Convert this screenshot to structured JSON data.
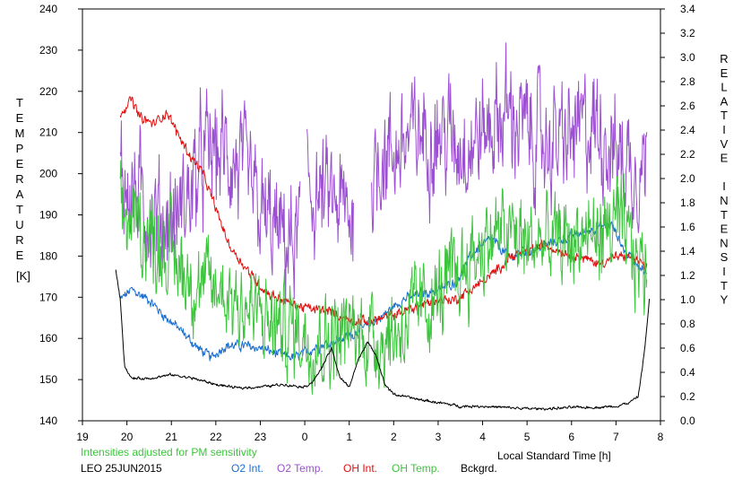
{
  "chart_data": {
    "type": "line",
    "station": "LEO 25JUN2015",
    "note": "Intensities adjusted for PM sensitivity",
    "xlabel": "Local Standard Time [h]",
    "ylabel_left_letters": [
      "T",
      "E",
      "M",
      "P",
      "E",
      "R",
      "A",
      "T",
      "U",
      "R",
      "E"
    ],
    "ylabel_left_unit": "[K]",
    "ylabel_right_letters": [
      "R",
      "E",
      "L",
      "A",
      "T",
      "I",
      "V",
      "E",
      "",
      "I",
      "N",
      "T",
      "E",
      "N",
      "S",
      "I",
      "T",
      "Y"
    ],
    "xlim": [
      19,
      32
    ],
    "ylim_left": [
      140,
      240
    ],
    "ylim_right": [
      0.0,
      3.4
    ],
    "xticks": [
      19,
      20,
      21,
      22,
      23,
      24,
      25,
      26,
      27,
      28,
      29,
      30,
      31,
      32
    ],
    "xtick_labels": [
      "19",
      "20",
      "21",
      "22",
      "23",
      "0",
      "1",
      "2",
      "3",
      "4",
      "5",
      "6",
      "7",
      "8"
    ],
    "yticks_left": [
      "140",
      "150",
      "160",
      "170",
      "180",
      "190",
      "200",
      "210",
      "220",
      "230",
      "240"
    ],
    "yticks_right": [
      "0.0",
      "0.2",
      "0.4",
      "0.6",
      "0.8",
      "1.0",
      "1.2",
      "1.4",
      "1.6",
      "1.8",
      "2.0",
      "2.2",
      "2.4",
      "2.6",
      "2.8",
      "3.0",
      "3.2",
      "3.4"
    ],
    "grid": false,
    "legend_position": "bottom",
    "series": [
      {
        "name": "O2 Int.",
        "axis": "right",
        "color": "#1a6fd0",
        "noise": 0.03,
        "x": [
          19.85,
          20.1,
          20.5,
          20.8,
          21.2,
          21.6,
          21.9,
          22.2,
          22.6,
          23.0,
          23.4,
          23.8,
          24.2,
          24.6,
          25.0,
          25.4,
          25.8,
          26.2,
          26.6,
          27.0,
          27.4,
          27.8,
          28.2,
          28.6,
          29.0,
          29.4,
          29.8,
          30.2,
          30.6,
          30.9,
          31.2,
          31.5,
          31.7
        ],
        "y": [
          1.0,
          1.08,
          1.0,
          0.88,
          0.75,
          0.6,
          0.52,
          0.62,
          0.62,
          0.6,
          0.55,
          0.52,
          0.6,
          0.65,
          0.7,
          0.78,
          0.88,
          1.0,
          1.05,
          1.08,
          1.15,
          1.4,
          1.5,
          1.35,
          1.4,
          1.45,
          1.5,
          1.55,
          1.6,
          1.62,
          1.4,
          1.3,
          1.2
        ]
      },
      {
        "name": "O2 Temp.",
        "axis": "left",
        "color": "#9b4fd1",
        "noise": 10,
        "x": [
          19.85,
          20.2,
          20.6,
          21.0,
          21.4,
          21.8,
          22.2,
          22.6,
          23.0,
          23.4,
          23.8,
          24.0,
          24.2,
          24.6,
          25.0,
          25.4,
          25.7,
          26.0,
          26.2,
          26.6,
          27.0,
          27.4,
          27.8,
          28.2,
          28.6,
          29.0,
          29.4,
          29.8,
          30.2,
          30.6,
          31.0,
          31.4,
          31.7
        ],
        "y": [
          200,
          195,
          190,
          188,
          195,
          205,
          205,
          200,
          190,
          185,
          182,
          196,
          195,
          193,
          190,
          193,
          205,
          205,
          207,
          210,
          210,
          208,
          208,
          212,
          215,
          210,
          208,
          207,
          210,
          212,
          205,
          202,
          203
        ],
        "gaps": [
          [
            23.9,
            24.05
          ],
          [
            25.1,
            25.5
          ]
        ]
      },
      {
        "name": "OH Int.",
        "axis": "right",
        "color": "#e01010",
        "noise": 0.03,
        "x": [
          19.85,
          20.1,
          20.3,
          20.6,
          20.9,
          21.1,
          21.4,
          21.7,
          22.0,
          22.3,
          22.6,
          22.9,
          23.2,
          23.5,
          23.8,
          24.2,
          24.6,
          25.0,
          25.4,
          25.8,
          26.2,
          26.6,
          27.0,
          27.4,
          27.8,
          28.2,
          28.6,
          29.0,
          29.4,
          29.8,
          30.2,
          30.6,
          31.0,
          31.4,
          31.7
        ],
        "y": [
          2.55,
          2.65,
          2.5,
          2.45,
          2.55,
          2.4,
          2.2,
          2.05,
          1.75,
          1.45,
          1.3,
          1.15,
          1.05,
          1.0,
          0.95,
          0.92,
          0.9,
          0.83,
          0.82,
          0.85,
          0.9,
          0.95,
          1.0,
          1.0,
          1.1,
          1.2,
          1.35,
          1.4,
          1.45,
          1.4,
          1.35,
          1.3,
          1.35,
          1.35,
          1.25
        ]
      },
      {
        "name": "OH Temp.",
        "axis": "left",
        "color": "#3cc43c",
        "noise": 8,
        "x": [
          19.85,
          20.2,
          20.6,
          21.0,
          21.4,
          21.8,
          22.2,
          22.6,
          23.0,
          23.4,
          23.8,
          24.2,
          24.6,
          25.0,
          25.4,
          25.8,
          26.2,
          26.6,
          27.0,
          27.4,
          27.8,
          28.2,
          28.6,
          29.0,
          29.4,
          29.8,
          30.2,
          30.6,
          31.0,
          31.4,
          31.7
        ],
        "y": [
          190,
          188,
          184,
          180,
          175,
          172,
          172,
          168,
          165,
          163,
          162,
          160,
          160,
          162,
          161,
          160,
          163,
          167,
          170,
          175,
          180,
          185,
          185,
          183,
          183,
          183,
          185,
          185,
          188,
          180,
          176
        ]
      },
      {
        "name": "Bckgrd.",
        "axis": "right",
        "color": "#000000",
        "noise": 0.008,
        "x": [
          19.75,
          19.85,
          19.95,
          20.1,
          20.5,
          21.0,
          21.5,
          22.0,
          22.5,
          23.0,
          23.5,
          24.0,
          24.2,
          24.4,
          24.6,
          24.8,
          25.0,
          25.2,
          25.4,
          25.6,
          25.8,
          26.0,
          26.5,
          27.0,
          27.5,
          28.0,
          28.5,
          29.0,
          29.5,
          30.0,
          30.5,
          31.0,
          31.3,
          31.5,
          31.65,
          31.75
        ],
        "y": [
          1.25,
          1.0,
          0.45,
          0.35,
          0.35,
          0.38,
          0.35,
          0.3,
          0.27,
          0.28,
          0.3,
          0.28,
          0.33,
          0.45,
          0.6,
          0.35,
          0.28,
          0.5,
          0.65,
          0.55,
          0.3,
          0.22,
          0.18,
          0.15,
          0.12,
          0.12,
          0.11,
          0.1,
          0.1,
          0.11,
          0.11,
          0.12,
          0.15,
          0.2,
          0.6,
          1.0
        ]
      }
    ]
  }
}
